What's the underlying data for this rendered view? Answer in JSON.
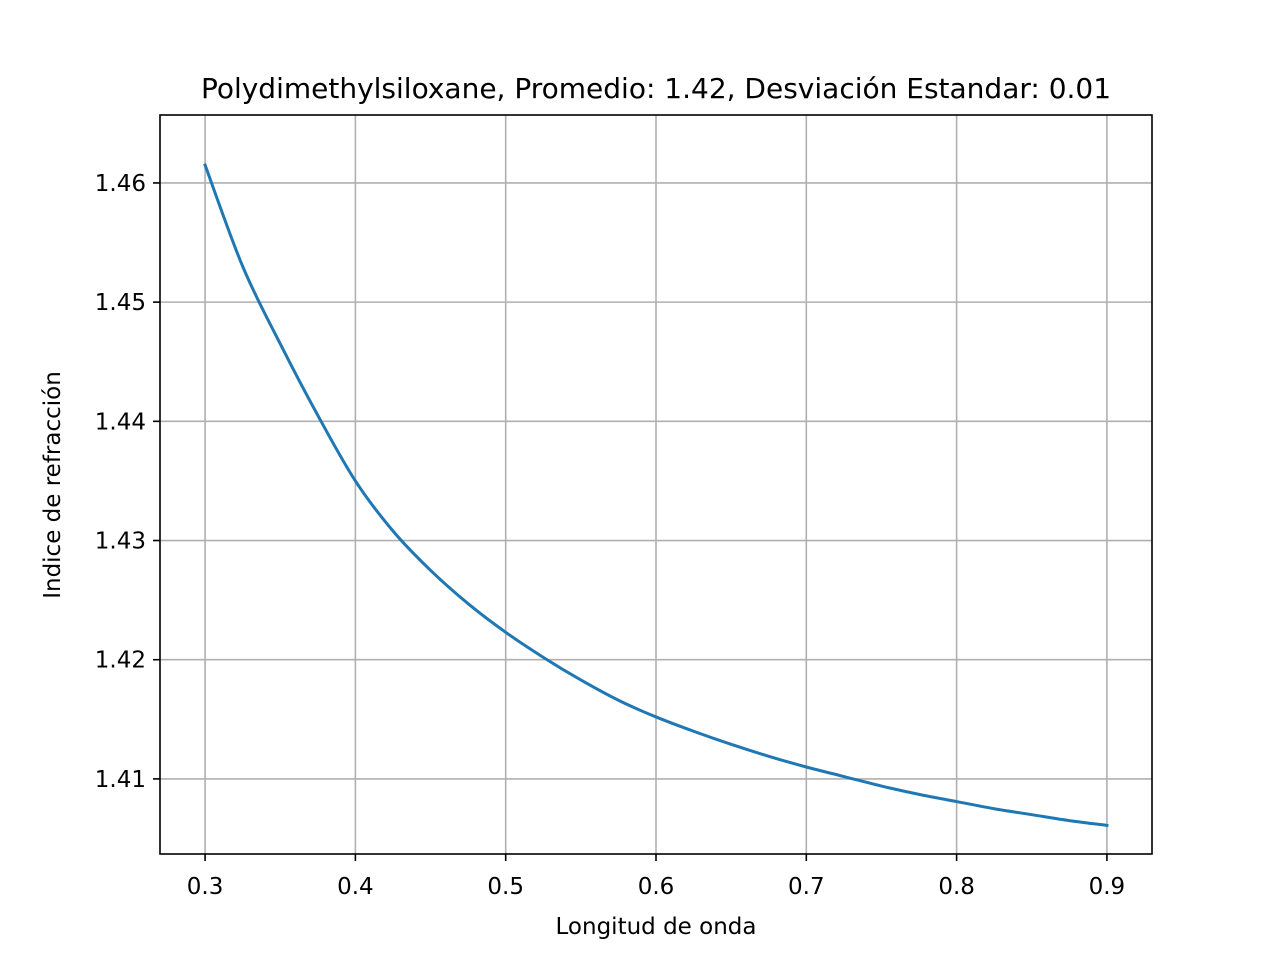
{
  "chart_data": {
    "type": "line",
    "title": "Polydimethylsiloxane, Promedio: 1.42, Desviación Estandar: 0.01",
    "xlabel": "Longitud de onda",
    "ylabel": "Indice de refracción",
    "xlim": [
      0.27,
      0.93
    ],
    "ylim": [
      1.4037,
      1.4657
    ],
    "grid": true,
    "legend": "none",
    "xticks": [
      0.3,
      0.4,
      0.5,
      0.6,
      0.7,
      0.8,
      0.9
    ],
    "xtick_labels": [
      "0.3",
      "0.4",
      "0.5",
      "0.6",
      "0.7",
      "0.8",
      "0.9"
    ],
    "yticks": [
      1.41,
      1.42,
      1.43,
      1.44,
      1.45,
      1.46
    ],
    "ytick_labels": [
      "1.41",
      "1.42",
      "1.43",
      "1.44",
      "1.45",
      "1.46"
    ],
    "series": [
      {
        "color": "#1f77b4",
        "x": [
          0.3,
          0.325,
          0.35,
          0.375,
          0.4,
          0.425,
          0.45,
          0.475,
          0.5,
          0.525,
          0.55,
          0.575,
          0.6,
          0.625,
          0.65,
          0.675,
          0.7,
          0.725,
          0.75,
          0.775,
          0.8,
          0.825,
          0.85,
          0.875,
          0.9
        ],
        "y": [
          1.4615,
          1.453,
          1.4465,
          1.4405,
          1.435,
          1.4308,
          1.4275,
          1.4247,
          1.4223,
          1.4202,
          1.4183,
          1.4166,
          1.4152,
          1.414,
          1.4129,
          1.4119,
          1.411,
          1.4102,
          1.4094,
          1.4087,
          1.4081,
          1.4075,
          1.407,
          1.4065,
          1.4061
        ]
      }
    ]
  }
}
